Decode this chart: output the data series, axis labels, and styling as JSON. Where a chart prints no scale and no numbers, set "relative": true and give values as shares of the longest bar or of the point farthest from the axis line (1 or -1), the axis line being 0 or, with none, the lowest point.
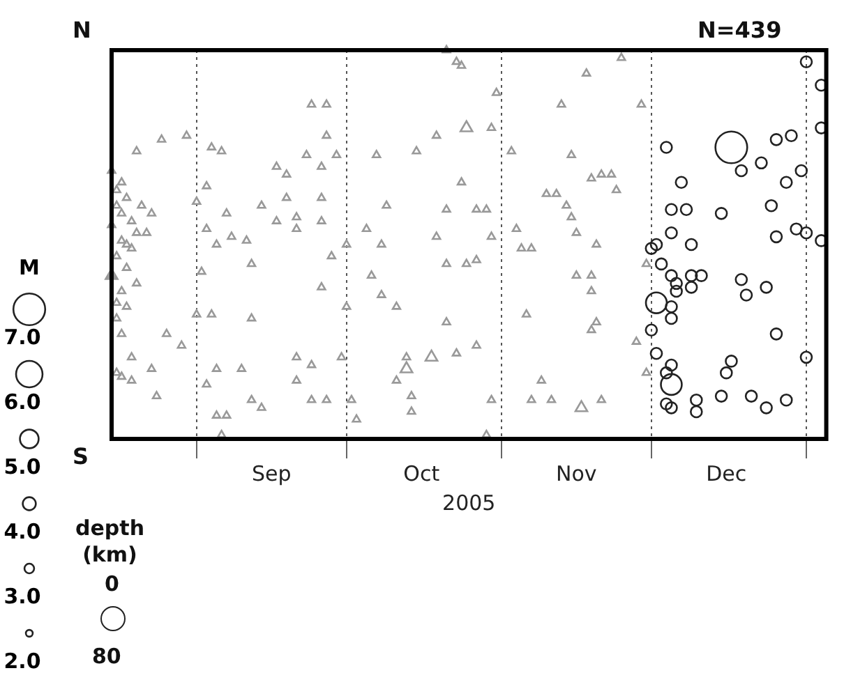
{
  "chart_data": {
    "type": "bubble",
    "relative": true,
    "xlabel": "2005",
    "legend_title": "M",
    "annotations": [
      "N",
      "S",
      "N=439",
      "depth\n(km)",
      "0",
      "80"
    ],
    "xlim": [
      "2005-08-15",
      "2006-01-05"
    ],
    "xticks": [
      {
        "value": "2005-09-01",
        "label": null
      },
      {
        "value": "2005-09-16",
        "label": "Sep"
      },
      {
        "value": "2005-10-01",
        "label": null
      },
      {
        "value": "2005-10-16",
        "label": "Oct"
      },
      {
        "value": "2005-11-01",
        "label": null
      },
      {
        "value": "2005-11-16",
        "label": "Nov"
      },
      {
        "value": "2005-12-01",
        "label": null
      },
      {
        "value": "2005-12-16",
        "label": "Dec"
      },
      {
        "value": "2006-01-01",
        "label": null
      }
    ],
    "grid": "x",
    "line_style": "dotted",
    "size_legend": [
      {
        "value": 130,
        "label": "7.0"
      },
      {
        "value": 90,
        "label": "6.0"
      },
      {
        "value": 45,
        "label": "5.0"
      },
      {
        "value": 22,
        "label": "4.0"
      },
      {
        "value": 12,
        "label": "3.0"
      },
      {
        "value": 6,
        "label": "2.0"
      }
    ],
    "series": [
      {
        "marker": "triangle",
        "color": "#999999",
        "x": [
          "2005-08-15",
          "2005-08-16",
          "2005-08-17",
          "2005-08-15",
          "2005-08-17",
          "2005-08-16",
          "2005-08-15",
          "2005-08-17",
          "2005-08-18",
          "2005-08-16",
          "2005-08-17",
          "2005-08-17",
          "2005-08-18",
          "2005-08-19",
          "2005-08-20",
          "2005-08-19",
          "2005-08-21",
          "2005-08-23",
          "2005-08-22",
          "2005-08-18",
          "2005-08-20",
          "2005-08-19",
          "2005-08-17",
          "2005-08-15",
          "2005-08-16",
          "2005-08-18",
          "2005-08-16",
          "2005-08-20",
          "2005-08-25",
          "2005-08-30",
          "2005-09-04",
          "2005-09-06",
          "2005-09-03",
          "2005-09-01",
          "2005-09-07",
          "2005-09-03",
          "2005-09-05",
          "2005-09-08",
          "2005-09-11",
          "2005-09-12",
          "2005-09-02",
          "2005-09-01",
          "2005-09-04",
          "2005-08-29",
          "2005-08-26",
          "2005-08-23",
          "2005-08-19",
          "2005-08-16",
          "2005-08-24",
          "2005-09-03",
          "2005-09-05",
          "2005-09-10",
          "2005-09-12",
          "2005-09-14",
          "2005-09-05",
          "2005-09-07",
          "2005-09-06",
          "2005-09-12",
          "2005-09-14",
          "2005-09-17",
          "2005-09-19",
          "2005-09-19",
          "2005-09-17",
          "2005-09-21",
          "2005-09-21",
          "2005-09-24",
          "2005-09-27",
          "2005-09-27",
          "2005-09-29",
          "2005-09-23",
          "2005-09-26",
          "2005-09-26",
          "2005-09-26",
          "2005-09-28",
          "2005-09-26",
          "2005-09-21",
          "2005-09-24",
          "2005-09-21",
          "2005-09-24",
          "2005-09-27",
          "2005-09-30",
          "2005-10-02",
          "2005-10-03",
          "2005-10-01",
          "2005-10-01",
          "2005-10-05",
          "2005-10-09",
          "2005-10-07",
          "2005-10-15",
          "2005-10-19",
          "2005-10-21",
          "2005-10-19",
          "2005-10-08",
          "2005-10-06",
          "2005-10-08",
          "2005-10-11",
          "2005-10-21",
          "2005-10-13",
          "2005-10-13",
          "2005-10-18",
          "2005-10-23",
          "2005-10-11",
          "2005-10-14",
          "2005-10-14",
          "2005-10-21",
          "2005-10-23",
          "2005-10-21",
          "2005-10-24",
          "2005-10-25",
          "2005-10-24",
          "2005-10-31",
          "2005-10-30",
          "2005-11-03",
          "2005-10-27",
          "2005-10-29",
          "2005-10-30",
          "2005-10-25",
          "2005-10-27",
          "2005-10-27",
          "2005-10-30",
          "2005-10-29",
          "2005-11-04",
          "2005-11-05",
          "2005-11-07",
          "2005-11-06",
          "2005-11-07",
          "2005-11-09",
          "2005-11-11",
          "2005-11-17",
          "2005-11-21",
          "2005-11-19",
          "2005-11-20",
          "2005-11-19",
          "2005-11-19",
          "2005-11-16",
          "2005-11-20",
          "2005-11-16",
          "2005-11-14",
          "2005-11-15",
          "2005-11-10",
          "2005-11-12",
          "2005-11-19",
          "2005-11-21",
          "2005-11-23",
          "2005-11-24",
          "2005-11-15",
          "2005-11-13",
          "2005-11-18",
          "2005-11-25",
          "2005-11-29",
          "2005-11-28",
          "2005-11-30",
          "2005-11-30"
        ],
        "values": [
          0.69,
          0.64,
          0.58,
          0.55,
          0.51,
          0.47,
          0.42,
          0.38,
          0.34,
          0.31,
          0.27,
          0.66,
          0.62,
          0.56,
          0.53,
          0.49,
          0.6,
          0.58,
          0.53,
          0.44,
          0.4,
          0.21,
          0.16,
          0.42,
          0.6,
          0.5,
          0.35,
          0.74,
          0.77,
          0.78,
          0.75,
          0.74,
          0.65,
          0.61,
          0.58,
          0.54,
          0.5,
          0.52,
          0.51,
          0.45,
          0.43,
          0.32,
          0.32,
          0.24,
          0.27,
          0.18,
          0.15,
          0.17,
          0.11,
          0.14,
          0.18,
          0.18,
          0.1,
          0.08,
          0.06,
          0.06,
          0.01,
          0.31,
          0.6,
          0.7,
          0.68,
          0.62,
          0.56,
          0.57,
          0.54,
          0.86,
          0.86,
          0.78,
          0.73,
          0.73,
          0.7,
          0.62,
          0.56,
          0.47,
          0.39,
          0.21,
          0.19,
          0.15,
          0.1,
          0.1,
          0.21,
          0.1,
          0.05,
          0.5,
          0.34,
          0.54,
          0.6,
          0.73,
          0.74,
          0.78,
          0.59,
          0.52,
          0.5,
          0.42,
          0.37,
          0.34,
          0.3,
          0.21,
          0.18,
          0.21,
          0.22,
          0.15,
          0.11,
          0.07,
          0.45,
          0.97,
          1,
          0.66,
          0.8,
          0.96,
          0.89,
          0.8,
          0.74,
          0.59,
          0.59,
          0.52,
          0.45,
          0.46,
          0.24,
          0.1,
          0.01,
          0.54,
          0.49,
          0.49,
          0.32,
          0.1,
          0.15,
          0.1,
          0.08,
          0.1,
          0.28,
          0.3,
          0.42,
          0.38,
          0.42,
          0.5,
          0.53,
          0.6,
          0.57,
          0.63,
          0.63,
          0.67,
          0.68,
          0.68,
          0.64,
          0.73,
          0.86,
          0.94,
          0.98,
          0.86,
          0.25,
          0.45,
          0.17
        ],
        "sizes": [
          4,
          4,
          4,
          4,
          4,
          4,
          4,
          4,
          4,
          4,
          4,
          4,
          4,
          4,
          4,
          4,
          4,
          4,
          4,
          4,
          4,
          4,
          4,
          10,
          4,
          4,
          4,
          4,
          4,
          4,
          4,
          4,
          4,
          4,
          4,
          4,
          4,
          4,
          4,
          4,
          4,
          4,
          4,
          4,
          4,
          4,
          4,
          4,
          4,
          4,
          4,
          4,
          4,
          4,
          4,
          4,
          4,
          4,
          4,
          4,
          4,
          4,
          4,
          4,
          4,
          4,
          4,
          4,
          4,
          4,
          4,
          4,
          4,
          4,
          4,
          4,
          4,
          4,
          4,
          4,
          4,
          4,
          4,
          4,
          4,
          4,
          4,
          4,
          4,
          4,
          4,
          4,
          4,
          4,
          4,
          4,
          4,
          4,
          10,
          10,
          4,
          4,
          4,
          4,
          4,
          4,
          4,
          4,
          10,
          4,
          4,
          4,
          4,
          4,
          4,
          4,
          4,
          4,
          4,
          4,
          4,
          4,
          4,
          4,
          4,
          4,
          4,
          4,
          10,
          4,
          4,
          4,
          4,
          4,
          4,
          4,
          4,
          4,
          4,
          4,
          4,
          4,
          4,
          4,
          4,
          4,
          4,
          4,
          4,
          4,
          4,
          4,
          4
        ]
      },
      {
        "marker": "circle",
        "color": "#222222",
        "x": [
          "2005-12-04",
          "2005-12-17",
          "2005-12-07",
          "2005-12-08",
          "2005-12-05",
          "2005-12-15",
          "2005-12-19",
          "2005-12-23",
          "2005-12-26",
          "2005-12-29",
          "2005-12-28",
          "2005-12-31",
          "2006-01-01",
          "2006-01-04",
          "2006-01-04",
          "2006-01-04",
          "2006-01-01",
          "2005-12-30",
          "2005-12-26",
          "2005-12-25",
          "2005-12-09",
          "2005-12-05",
          "2005-12-02",
          "2005-12-01",
          "2005-12-03",
          "2005-12-05",
          "2005-12-06",
          "2005-12-06",
          "2005-12-09",
          "2005-12-11",
          "2005-12-09",
          "2005-12-02",
          "2005-12-05",
          "2005-12-05",
          "2005-12-01",
          "2005-12-02",
          "2005-12-05",
          "2005-12-04",
          "2005-12-05",
          "2005-12-04",
          "2005-12-05",
          "2005-12-10",
          "2005-12-10",
          "2005-12-15",
          "2005-12-21",
          "2005-12-24",
          "2005-12-28",
          "2005-12-17",
          "2005-12-16",
          "2005-12-19",
          "2005-12-20",
          "2005-12-24",
          "2005-12-26",
          "2006-01-01"
        ],
        "values": [
          0.75,
          0.75,
          0.66,
          0.59,
          0.59,
          0.58,
          0.69,
          0.71,
          0.77,
          0.78,
          0.66,
          0.69,
          0.97,
          0.91,
          0.8,
          0.51,
          0.53,
          0.54,
          0.52,
          0.6,
          0.5,
          0.53,
          0.5,
          0.49,
          0.45,
          0.42,
          0.4,
          0.38,
          0.42,
          0.42,
          0.39,
          0.35,
          0.34,
          0.31,
          0.28,
          0.22,
          0.19,
          0.17,
          0.14,
          0.09,
          0.08,
          0.1,
          0.07,
          0.11,
          0.11,
          0.08,
          0.1,
          0.2,
          0.17,
          0.41,
          0.37,
          0.39,
          0.27,
          0.21
        ],
        "sizes": [
          16,
          130,
          16,
          16,
          16,
          16,
          16,
          16,
          16,
          16,
          16,
          16,
          16,
          16,
          16,
          16,
          16,
          16,
          16,
          16,
          16,
          16,
          16,
          16,
          16,
          16,
          16,
          16,
          16,
          16,
          16,
          56,
          16,
          16,
          16,
          16,
          16,
          16,
          56,
          16,
          16,
          16,
          16,
          16,
          16,
          16,
          16,
          16,
          16,
          16,
          16,
          16,
          16,
          16
        ]
      }
    ]
  }
}
